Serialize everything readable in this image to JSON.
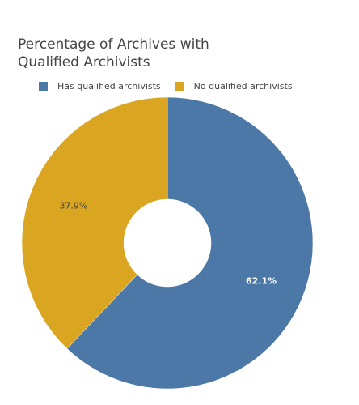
{
  "chart_data": {
    "type": "pie",
    "title": "Percentage of Archives with Qualified Archivists",
    "title_lines": [
      "Percentage of Archives with",
      "Qualified Archivists"
    ],
    "hole": 0.3,
    "legend_position": "top-left",
    "slices": [
      {
        "label": "Has qualified archivists",
        "value": 62.1,
        "text": "62.1%",
        "color": "#4C78A8"
      },
      {
        "label": "No qualified archivists",
        "value": 37.9,
        "text": "37.9%",
        "color": "#DAA520"
      }
    ]
  }
}
